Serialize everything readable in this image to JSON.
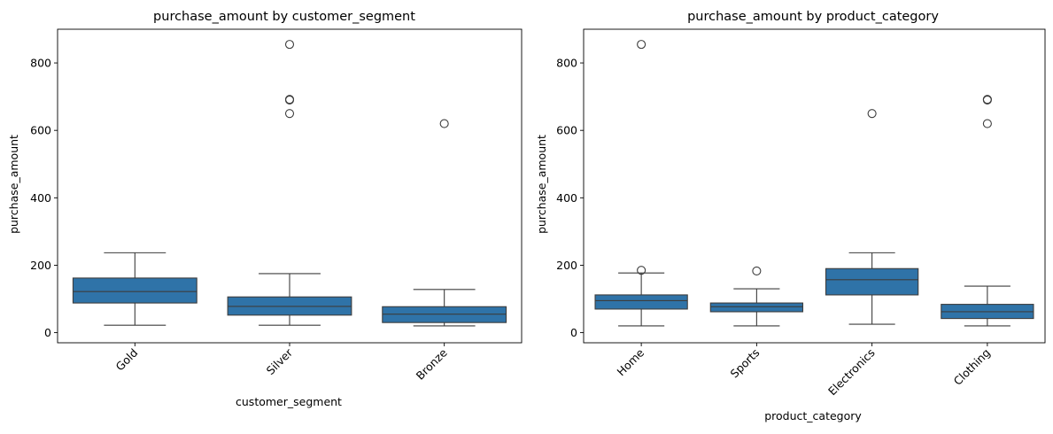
{
  "chart_data": [
    {
      "type": "box",
      "title": "purchase_amount by customer_segment",
      "xlabel": "customer_segment",
      "ylabel": "purchase_amount",
      "ylim": [
        -30,
        900
      ],
      "yticks": [
        0,
        200,
        400,
        600,
        800
      ],
      "color": "#2f73a8",
      "categories": [
        "Gold",
        "Silver",
        "Bronze"
      ],
      "boxes": [
        {
          "category": "Gold",
          "min": 22,
          "q1": 88,
          "median": 122,
          "q3": 162,
          "max": 237,
          "outliers": []
        },
        {
          "category": "Silver",
          "min": 22,
          "q1": 52,
          "median": 78,
          "q3": 106,
          "max": 175,
          "outliers": [
            855,
            692,
            690,
            650
          ]
        },
        {
          "category": "Bronze",
          "min": 20,
          "q1": 30,
          "median": 55,
          "q3": 77,
          "max": 128,
          "outliers": [
            620
          ]
        }
      ]
    },
    {
      "type": "box",
      "title": "purchase_amount by product_category",
      "xlabel": "product_category",
      "ylabel": "purchase_amount",
      "ylim": [
        -30,
        900
      ],
      "yticks": [
        0,
        200,
        400,
        600,
        800
      ],
      "color": "#2f73a8",
      "categories": [
        "Home",
        "Sports",
        "Electronics",
        "Clothing"
      ],
      "boxes": [
        {
          "category": "Home",
          "min": 20,
          "q1": 70,
          "median": 95,
          "q3": 112,
          "max": 177,
          "outliers": [
            855,
            185
          ]
        },
        {
          "category": "Sports",
          "min": 20,
          "q1": 62,
          "median": 77,
          "q3": 88,
          "max": 130,
          "outliers": [
            183
          ]
        },
        {
          "category": "Electronics",
          "min": 25,
          "q1": 112,
          "median": 157,
          "q3": 190,
          "max": 237,
          "outliers": [
            650
          ]
        },
        {
          "category": "Clothing",
          "min": 20,
          "q1": 42,
          "median": 62,
          "q3": 84,
          "max": 138,
          "outliers": [
            692,
            690,
            620
          ]
        }
      ]
    }
  ]
}
